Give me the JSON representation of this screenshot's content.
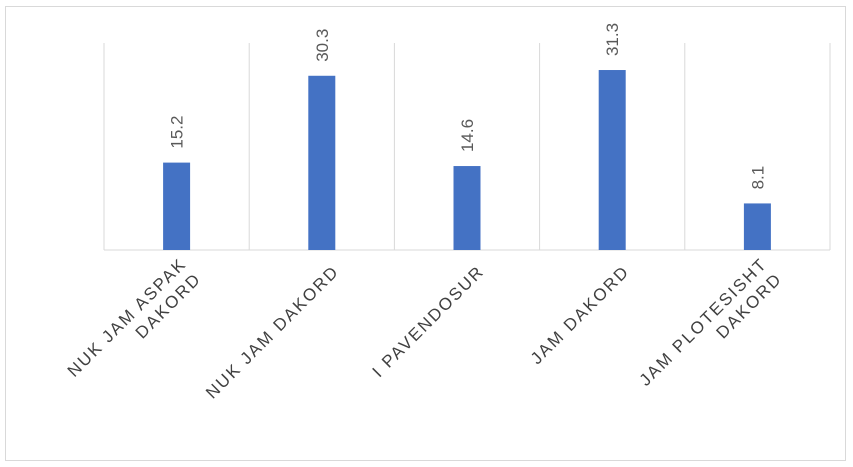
{
  "chart_data": {
    "type": "bar",
    "title": "",
    "xlabel": "",
    "ylabel": "",
    "categories": [
      [
        "NUK JAM ASPAK",
        "DAKORD"
      ],
      [
        "NUK JAM DAKORD"
      ],
      [
        "I PAVENDOSUR"
      ],
      [
        "JAM DAKORD"
      ],
      [
        "JAM PLOTESISHT",
        "DAKORD"
      ]
    ],
    "values": [
      15.2,
      30.3,
      14.6,
      31.3,
      8.1
    ],
    "value_labels": [
      "15.2",
      "30.3",
      "14.6",
      "31.3",
      "8.1"
    ],
    "ylim": [
      0,
      36
    ],
    "grid": "vertical",
    "legend": "none",
    "bar_color": "#4472c4",
    "grid_color": "#d9d9d9"
  }
}
